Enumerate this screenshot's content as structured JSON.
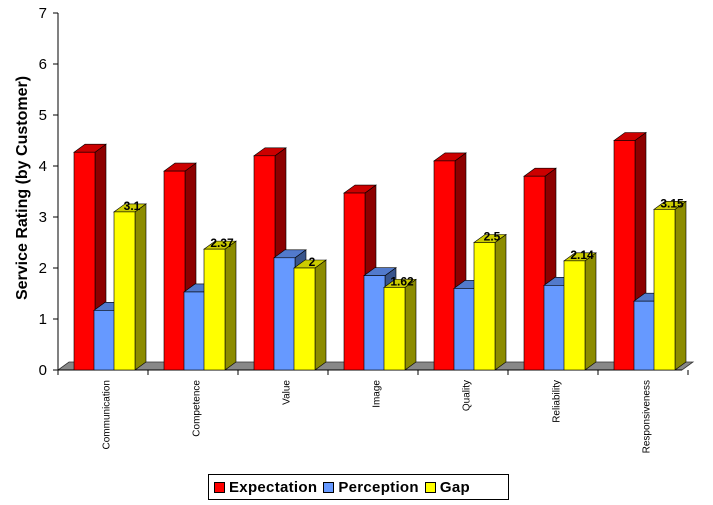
{
  "chart_data": {
    "type": "bar",
    "ylabel": "Service Rating (by Customer)",
    "xlabel": "",
    "ylim": [
      0,
      7
    ],
    "yticks": [
      "0",
      "1",
      "2",
      "3",
      "4",
      "5",
      "6",
      "7"
    ],
    "categories": [
      "Communication",
      "Competence",
      "Value",
      "Image",
      "Quality",
      "Reliability",
      "Responsiveness"
    ],
    "series": [
      {
        "name": "Expectation",
        "color": "#ff0000",
        "values": [
          4.27,
          3.9,
          4.2,
          3.47,
          4.1,
          3.8,
          4.5
        ]
      },
      {
        "name": "Perception",
        "color": "#6699ff",
        "values": [
          1.17,
          1.53,
          2.2,
          1.85,
          1.6,
          1.66,
          1.35
        ]
      },
      {
        "name": "Gap",
        "color": "#ffff00",
        "values": [
          3.1,
          2.37,
          2,
          1.62,
          2.5,
          2.14,
          3.15
        ]
      }
    ],
    "data_labels": {
      "Gap": [
        "3.1",
        "2.37",
        "2",
        "1.62",
        "2.5",
        "2.14",
        "3.15"
      ]
    },
    "legend_position": "bottom",
    "grid": false,
    "style": "3d-column"
  }
}
